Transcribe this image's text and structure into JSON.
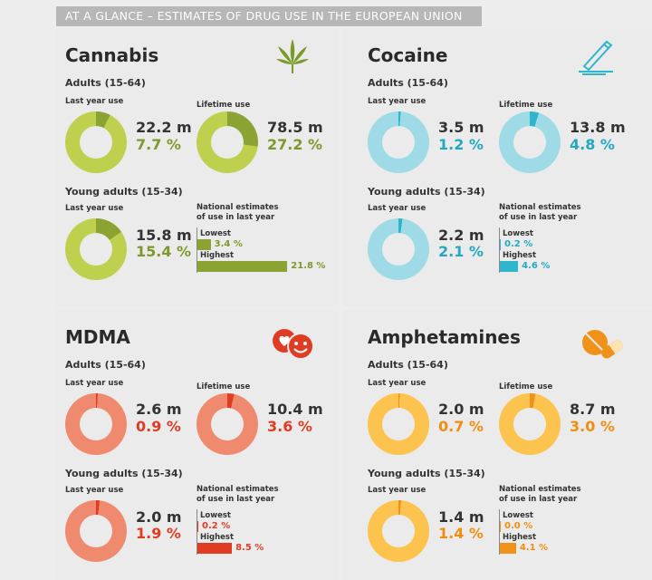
{
  "header": {
    "title": "AT A GLANCE – ESTIMATES OF DRUG USE IN THE EUROPEAN UNION"
  },
  "colors": {
    "cannabis_light": "#bfd04f",
    "cannabis_dark": "#8aa332",
    "cannabis_text": "#7c9a2a",
    "cocaine_light": "#9fdbe6",
    "cocaine_dark": "#2fb6cc",
    "cocaine_text": "#22a8c0",
    "mdma_light": "#f08a6e",
    "mdma_dark": "#e03c24",
    "mdma_text": "#e03c24",
    "amph_light": "#fcc34f",
    "amph_dark": "#f0911a",
    "amph_text": "#ef8e10"
  },
  "cannabis": {
    "name": "Cannabis",
    "icon": "cannabis-leaf-icon",
    "adults": "Adults (15-64)",
    "young": "Young adults (15-34)",
    "last_year_label": "Last year use",
    "lifetime_label": "Lifetime use",
    "national_label": "National estimates of use in last year",
    "adult_last_num": "22.2 m",
    "adult_last_pct": "7.7 %",
    "adult_last_frac": 0.077,
    "adult_life_num": "78.5 m",
    "adult_life_pct": "27.2 %",
    "adult_life_frac": 0.272,
    "young_last_num": "15.8 m",
    "young_last_pct": "15.4 %",
    "young_last_frac": 0.154,
    "lowest_label": "Lowest",
    "lowest": "3.4 %",
    "lowest_val": 3.4,
    "highest_label": "Highest",
    "highest": "21.8 %",
    "highest_val": 21.8
  },
  "cocaine": {
    "name": "Cocaine",
    "icon": "cocaine-line-icon",
    "adults": "Adults (15-64)",
    "young": "Young adults (15-34)",
    "last_year_label": "Last year use",
    "lifetime_label": "Lifetime use",
    "national_label": "National estimates of use in last year",
    "adult_last_num": "3.5 m",
    "adult_last_pct": "1.2 %",
    "adult_last_frac": 0.012,
    "adult_life_num": "13.8 m",
    "adult_life_pct": "4.8 %",
    "adult_life_frac": 0.048,
    "young_last_num": "2.2 m",
    "young_last_pct": "2.1 %",
    "young_last_frac": 0.021,
    "lowest_label": "Lowest",
    "lowest": "0.2 %",
    "lowest_val": 0.2,
    "highest_label": "Highest",
    "highest": "4.6 %",
    "highest_val": 4.6
  },
  "mdma": {
    "name": "MDMA",
    "icon": "mdma-faces-icon",
    "adults": "Adults (15-64)",
    "young": "Young adults (15-34)",
    "last_year_label": "Last year use",
    "lifetime_label": "Lifetime use",
    "national_label": "National estimates of use in last year",
    "adult_last_num": "2.6 m",
    "adult_last_pct": "0.9 %",
    "adult_last_frac": 0.009,
    "adult_life_num": "10.4 m",
    "adult_life_pct": "3.6 %",
    "adult_life_frac": 0.036,
    "young_last_num": "2.0 m",
    "young_last_pct": "1.9 %",
    "young_last_frac": 0.019,
    "lowest_label": "Lowest",
    "lowest": "0.2 %",
    "lowest_val": 0.2,
    "highest_label": "Highest",
    "highest": "8.5 %",
    "highest_val": 8.5
  },
  "amphetamines": {
    "name": "Amphetamines",
    "icon": "pill-capsule-icon",
    "adults": "Adults (15-64)",
    "young": "Young adults (15-34)",
    "last_year_label": "Last year use",
    "lifetime_label": "Lifetime use",
    "national_label": "National estimates of use in last year",
    "adult_last_num": "2.0 m",
    "adult_last_pct": "0.7 %",
    "adult_last_frac": 0.007,
    "adult_life_num": "8.7 m",
    "adult_life_pct": "3.0 %",
    "adult_life_frac": 0.03,
    "young_last_num": "1.4 m",
    "young_last_pct": "1.4 %",
    "young_last_frac": 0.014,
    "lowest_label": "Lowest",
    "lowest": "0.0 %",
    "lowest_val": 0.0,
    "highest_label": "Highest",
    "highest": "4.1 %",
    "highest_val": 4.1
  }
}
